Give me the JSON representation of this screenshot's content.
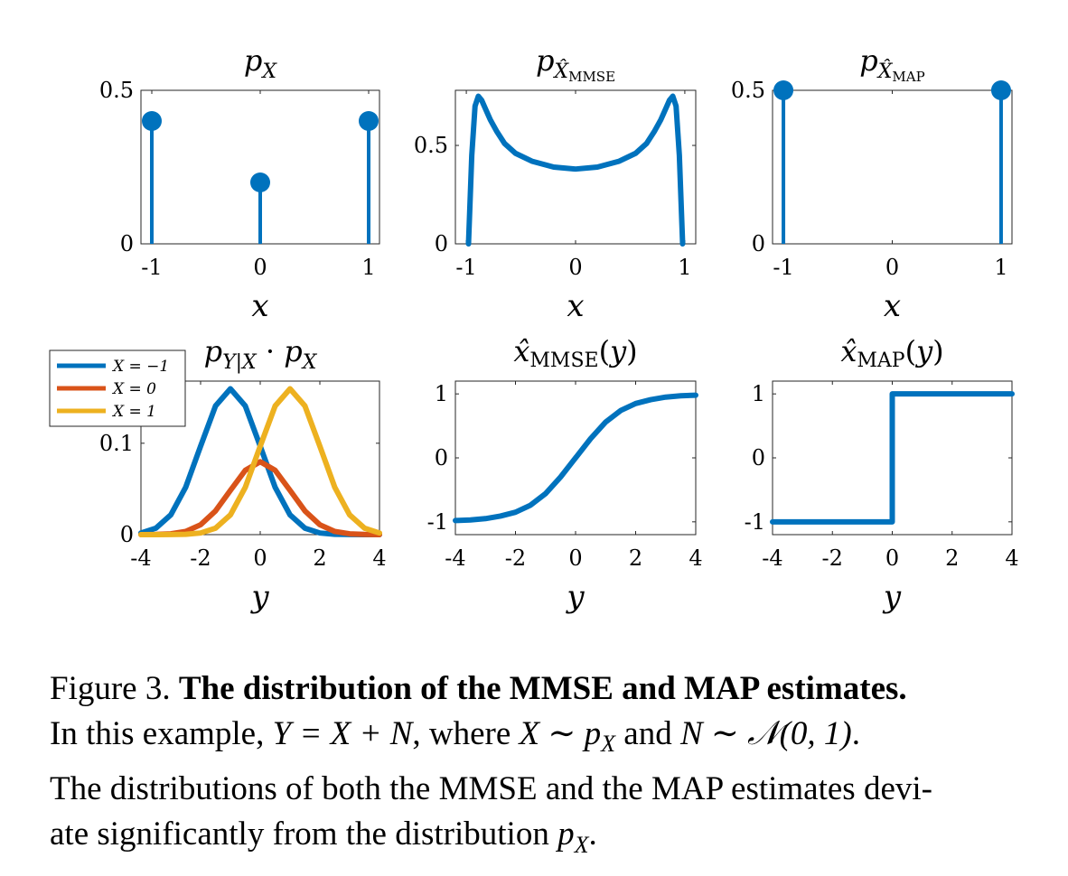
{
  "colors": {
    "blue": "#0072BD",
    "orange": "#D95319",
    "yellow": "#EDB120"
  },
  "chart_data": [
    {
      "id": "px",
      "type": "stem",
      "title": "p_X",
      "xlabel": "x",
      "x": [
        -1,
        0,
        1
      ],
      "values": [
        0.4,
        0.2,
        0.4
      ],
      "xlim": [
        -1.1,
        1.1
      ],
      "ylim": [
        0,
        0.5
      ],
      "xticks": [
        "-1",
        "0",
        "1"
      ],
      "yticks": [
        "0",
        "0.5"
      ]
    },
    {
      "id": "pxmmse",
      "type": "line",
      "title": "p_{X̂ MMSE}",
      "xlabel": "x",
      "x": [
        -0.98,
        -0.95,
        -0.92,
        -0.89,
        -0.86,
        -0.82,
        -0.78,
        -0.72,
        -0.65,
        -0.55,
        -0.4,
        -0.2,
        0,
        0.2,
        0.4,
        0.55,
        0.65,
        0.72,
        0.78,
        0.82,
        0.86,
        0.89,
        0.92,
        0.95,
        0.98
      ],
      "y": [
        0.0,
        0.45,
        0.7,
        0.75,
        0.73,
        0.68,
        0.63,
        0.57,
        0.51,
        0.46,
        0.42,
        0.39,
        0.38,
        0.39,
        0.42,
        0.46,
        0.51,
        0.57,
        0.63,
        0.68,
        0.73,
        0.75,
        0.7,
        0.45,
        0.0
      ],
      "xlim": [
        -1.1,
        1.1
      ],
      "ylim": [
        0,
        0.78
      ],
      "xticks": [
        "-1",
        "0",
        "1"
      ],
      "yticks": [
        "0",
        "0.5"
      ]
    },
    {
      "id": "pxmap",
      "type": "stem",
      "title": "p_{X̂ MAP}",
      "xlabel": "x",
      "x": [
        -1,
        1
      ],
      "values": [
        0.5,
        0.5
      ],
      "xlim": [
        -1.1,
        1.1
      ],
      "ylim": [
        0,
        0.5
      ],
      "xticks": [
        "-1",
        "0",
        "1"
      ],
      "yticks": [
        "0",
        "0.5"
      ]
    },
    {
      "id": "pyx",
      "type": "line",
      "title": "p_{Y|X} · p_X",
      "xlabel": "y",
      "x": [
        -4,
        -3.5,
        -3,
        -2.5,
        -2,
        -1.5,
        -1,
        -0.5,
        0,
        0.5,
        1,
        1.5,
        2,
        2.5,
        3,
        3.5,
        4
      ],
      "series": [
        {
          "name": "X = −1",
          "y": [
            0.0018,
            0.007,
            0.0216,
            0.0518,
            0.0968,
            0.1408,
            0.1596,
            0.1408,
            0.0968,
            0.0518,
            0.0216,
            0.007,
            0.0018,
            0.0004,
            0.0001,
            0.0,
            0.0
          ]
        },
        {
          "name": "X = 0",
          "y": [
            0.0,
            0.0002,
            0.0009,
            0.0035,
            0.0108,
            0.0259,
            0.0484,
            0.0704,
            0.0798,
            0.0704,
            0.0484,
            0.0259,
            0.0108,
            0.0035,
            0.0009,
            0.0002,
            0.0
          ]
        },
        {
          "name": "X = 1",
          "y": [
            0.0,
            0.0,
            0.0001,
            0.0004,
            0.0018,
            0.007,
            0.0216,
            0.0518,
            0.0968,
            0.1408,
            0.1596,
            0.1408,
            0.0968,
            0.0518,
            0.0216,
            0.007,
            0.0018
          ]
        }
      ],
      "xlim": [
        -4,
        4
      ],
      "ylim": [
        0,
        0.168
      ],
      "xticks": [
        "-4",
        "-2",
        "0",
        "2",
        "4"
      ],
      "yticks": [
        "0",
        "0.1"
      ],
      "legend": "top-left"
    },
    {
      "id": "xmmse",
      "type": "line",
      "title": "x̂_MMSE(y)",
      "xlabel": "y",
      "x": [
        -4,
        -3.5,
        -3,
        -2.5,
        -2,
        -1.5,
        -1,
        -0.5,
        0,
        0.5,
        1,
        1.5,
        2,
        2.5,
        3,
        3.5,
        4
      ],
      "y": [
        -0.98,
        -0.97,
        -0.95,
        -0.91,
        -0.85,
        -0.74,
        -0.56,
        -0.3,
        0.0,
        0.3,
        0.56,
        0.74,
        0.85,
        0.91,
        0.95,
        0.97,
        0.98
      ],
      "xlim": [
        -4,
        4
      ],
      "ylim": [
        -1.2,
        1.2
      ],
      "xticks": [
        "-4",
        "-2",
        "0",
        "2",
        "4"
      ],
      "yticks": [
        "-1",
        "0",
        "1"
      ]
    },
    {
      "id": "xmap",
      "type": "line",
      "title": "x̂_MAP(y)",
      "xlabel": "y",
      "x": [
        -4,
        0,
        0,
        4
      ],
      "y": [
        -1,
        -1,
        1,
        1
      ],
      "xlim": [
        -4,
        4
      ],
      "ylim": [
        -1.2,
        1.2
      ],
      "xticks": [
        "-4",
        "-2",
        "0",
        "2",
        "4"
      ],
      "yticks": [
        "-1",
        "0",
        "1"
      ]
    }
  ],
  "caption": {
    "label": "Figure 3.",
    "bold": "The distribution of the MMSE and MAP estimates.",
    "line2a": "In this example, ",
    "eq1": "Y = X + N",
    "line2b": ", where ",
    "eq2": "X ∼ p",
    "eq2sub": "X",
    "line2c": " and ",
    "eq3": "N ∼ 𝒩(0, 1)",
    "line2d": ".",
    "line3": "The distributions of both the MMSE and the MAP estimates devi-",
    "line4a": "ate significantly from the distribution ",
    "eq4": "p",
    "eq4sub": "X",
    "line4b": "."
  }
}
